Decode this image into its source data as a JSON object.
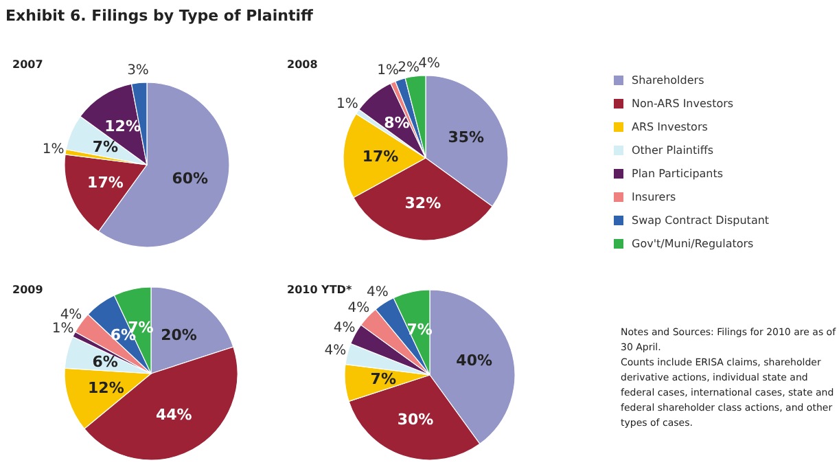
{
  "chart_data": [
    {
      "type": "other",
      "title": "Exhibit 6. Filings by Type of Plaintiff",
      "annotations": [
        "Notes and Sources: Filings for 2010 are as of 30 April.",
        "Counts include ERISA claims, shareholder derivative actions, individual state and federal cases, international cases, state and federal shareholder class actions, and other types of cases."
      ]
    },
    {
      "type": "pie",
      "title": "2007",
      "categories": [
        null,
        null,
        null,
        null,
        null,
        null
      ],
      "values": [
        60,
        17,
        1,
        7,
        12,
        3
      ],
      "value_labels": [
        "60%",
        "17%",
        "1%",
        "7%",
        "12%",
        "3%"
      ],
      "colors": [
        "#9496c8",
        "#9e2236",
        "#f8c500",
        "#d4eef6",
        "#5c1e5e",
        "#2f63ad"
      ]
    },
    {
      "type": "pie",
      "title": "2008",
      "categories": [
        "Shareholders",
        "Non-ARS Investors",
        "ARS Investors",
        "Other Plaintiffs",
        "Plan Participants",
        "Insurers",
        "Swap Contract Disputant",
        "Gov't/Muni/Regulators"
      ],
      "values": [
        35,
        32,
        17,
        1,
        8,
        1,
        2,
        4
      ],
      "value_labels": [
        "35%",
        "32%",
        "17%",
        "1%",
        "8%",
        "1%",
        "2%",
        "4%"
      ],
      "colors": [
        "#9496c8",
        "#9e2236",
        "#f8c500",
        "#d4eef6",
        "#5c1e5e",
        "#ee8080",
        "#2f63ad",
        "#34b04a"
      ],
      "legend": "right"
    },
    {
      "type": "pie",
      "title": "2009",
      "categories": [
        null,
        null,
        null,
        null,
        null,
        null,
        null,
        null
      ],
      "values": [
        20,
        44,
        12,
        6,
        1,
        4,
        6,
        7
      ],
      "value_labels": [
        "20%",
        "44%",
        "12%",
        "6%",
        "1%",
        "4%",
        "6%",
        "7%"
      ],
      "colors": [
        "#9496c8",
        "#9e2236",
        "#f8c500",
        "#d4eef6",
        "#5c1e5e",
        "#ee8080",
        "#2f63ad",
        "#34b04a"
      ]
    },
    {
      "type": "pie",
      "title": "2010 YTD*",
      "categories": [
        null,
        null,
        null,
        null,
        null,
        null,
        null,
        null
      ],
      "values": [
        40,
        30,
        7,
        4,
        4,
        4,
        4,
        7
      ],
      "value_labels": [
        "40%",
        "30%",
        "7%",
        "4%",
        "4%",
        "4%",
        "4%",
        "7%"
      ],
      "colors": [
        "#9496c8",
        "#9e2236",
        "#f8c500",
        "#d4eef6",
        "#5c1e5e",
        "#ee8080",
        "#2f63ad",
        "#34b04a"
      ]
    }
  ]
}
